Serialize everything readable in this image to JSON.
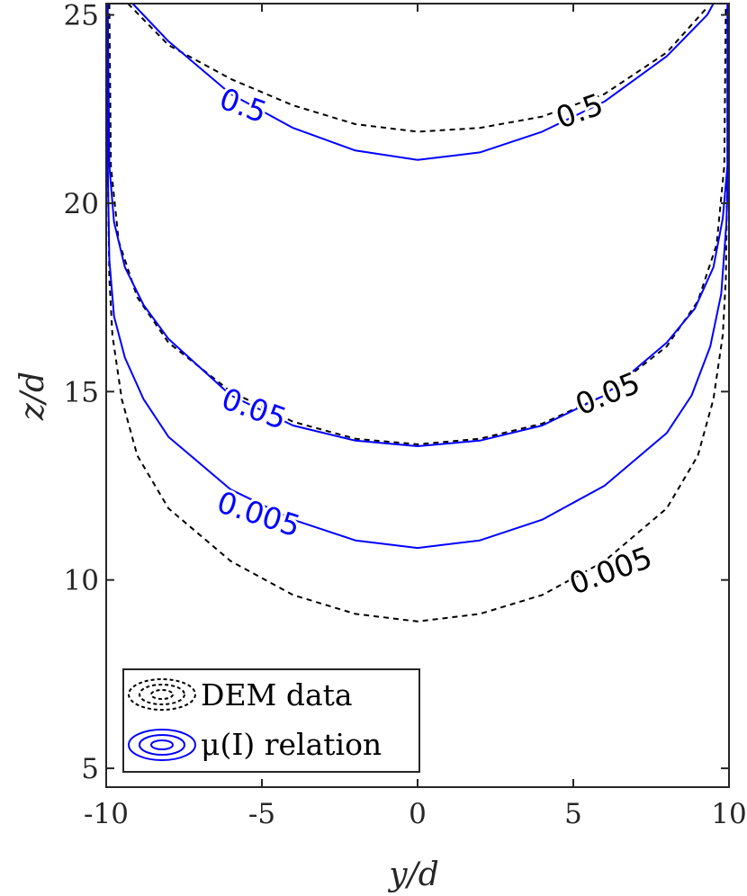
{
  "chart_data": {
    "type": "contour",
    "xlabel": "y/d",
    "ylabel": "z/d",
    "xlim": [
      -10,
      10
    ],
    "ylim": [
      4.5,
      25.3
    ],
    "xticks": [
      -10,
      -5,
      0,
      5,
      10
    ],
    "yticks": [
      5,
      10,
      15,
      20,
      25
    ],
    "xtick_labels": [
      "-10",
      "-5",
      "0",
      "5",
      "10"
    ],
    "ytick_labels": [
      "5",
      "10",
      "15",
      "20",
      "25"
    ],
    "grid": false,
    "legend_position": "bottom-left",
    "series": [
      {
        "name": "DEM data",
        "color": "#000000",
        "style": "dashed",
        "contours": [
          {
            "level": "0.5",
            "points": [
              [
                -9.3,
                25.3
              ],
              [
                -8,
                24.2
              ],
              [
                -6,
                23.3
              ],
              [
                -4,
                22.6
              ],
              [
                -2,
                22.1
              ],
              [
                0,
                21.9
              ],
              [
                2,
                22.0
              ],
              [
                4,
                22.3
              ],
              [
                6,
                22.9
              ],
              [
                8,
                24.0
              ],
              [
                9.3,
                25.2
              ]
            ]
          },
          {
            "level": "0.05",
            "points": [
              [
                -9.9,
                25.3
              ],
              [
                -9.85,
                21
              ],
              [
                -9.6,
                19
              ],
              [
                -9,
                17.5
              ],
              [
                -8,
                16.3
              ],
              [
                -6,
                15
              ],
              [
                -4,
                14.2
              ],
              [
                -2,
                13.75
              ],
              [
                0,
                13.6
              ],
              [
                2,
                13.75
              ],
              [
                4,
                14.15
              ],
              [
                6,
                14.9
              ],
              [
                8,
                16.2
              ],
              [
                9.0,
                17.4
              ],
              [
                9.6,
                18.9
              ],
              [
                9.85,
                21
              ],
              [
                9.9,
                25.3
              ]
            ]
          },
          {
            "level": "0.005",
            "points": [
              [
                -9.95,
                25.3
              ],
              [
                -9.95,
                21
              ],
              [
                -9.9,
                18
              ],
              [
                -9.8,
                16.5
              ],
              [
                -9.5,
                14.8
              ],
              [
                -9,
                13.3
              ],
              [
                -8,
                11.9
              ],
              [
                -6,
                10.5
              ],
              [
                -4,
                9.6
              ],
              [
                -2,
                9.1
              ],
              [
                0,
                8.9
              ],
              [
                2,
                9.1
              ],
              [
                4,
                9.6
              ],
              [
                6,
                10.5
              ],
              [
                8,
                11.9
              ],
              [
                9.0,
                13.3
              ],
              [
                9.5,
                14.8
              ],
              [
                9.8,
                16.5
              ],
              [
                9.9,
                18
              ],
              [
                9.95,
                21
              ],
              [
                9.95,
                25.3
              ]
            ]
          }
        ]
      },
      {
        "name": "μ(I) relation",
        "color": "#0000ff",
        "style": "solid",
        "contours": [
          {
            "level": "0.5",
            "points": [
              [
                -9.15,
                25.3
              ],
              [
                -8,
                24.3
              ],
              [
                -6,
                22.9
              ],
              [
                -4,
                22.0
              ],
              [
                -2,
                21.4
              ],
              [
                0,
                21.15
              ],
              [
                2,
                21.35
              ],
              [
                4,
                21.9
              ],
              [
                6,
                22.7
              ],
              [
                8,
                23.9
              ],
              [
                9.3,
                25.0
              ],
              [
                9.5,
                25.3
              ]
            ]
          },
          {
            "level": "0.05",
            "points": [
              [
                -9.95,
                25.3
              ],
              [
                -9.9,
                21
              ],
              [
                -9.75,
                19.5
              ],
              [
                -9.4,
                18.3
              ],
              [
                -8.8,
                17.3
              ],
              [
                -8,
                16.4
              ],
              [
                -6,
                14.9
              ],
              [
                -4,
                14.1
              ],
              [
                -2,
                13.7
              ],
              [
                0,
                13.55
              ],
              [
                2,
                13.7
              ],
              [
                4,
                14.1
              ],
              [
                6,
                14.9
              ],
              [
                8,
                16.3
              ],
              [
                8.9,
                17.2
              ],
              [
                9.5,
                18.3
              ],
              [
                9.8,
                19.6
              ],
              [
                9.95,
                21
              ],
              [
                9.95,
                25.3
              ]
            ]
          },
          {
            "level": "0.005",
            "points": [
              [
                -9.98,
                25.3
              ],
              [
                -9.95,
                21
              ],
              [
                -9.9,
                18.5
              ],
              [
                -9.75,
                17
              ],
              [
                -9.4,
                15.9
              ],
              [
                -8.8,
                14.8
              ],
              [
                -8,
                13.8
              ],
              [
                -6,
                12.4
              ],
              [
                -4,
                11.6
              ],
              [
                -2,
                11.05
              ],
              [
                0,
                10.85
              ],
              [
                2,
                11.05
              ],
              [
                4,
                11.6
              ],
              [
                6,
                12.5
              ],
              [
                8,
                13.9
              ],
              [
                8.8,
                14.9
              ],
              [
                9.4,
                16.2
              ],
              [
                9.75,
                17.6
              ],
              [
                9.92,
                19.5
              ],
              [
                9.97,
                21
              ],
              [
                9.98,
                25.3
              ]
            ]
          }
        ]
      }
    ],
    "contour_labels": [
      {
        "text": "0.5",
        "series": "DEM data",
        "x": 5.2,
        "y": 22.45,
        "angle": -20
      },
      {
        "text": "0.05",
        "series": "DEM data",
        "x": 6.1,
        "y": 14.95,
        "angle": -22
      },
      {
        "text": "0.005",
        "series": "DEM data",
        "x": 6.2,
        "y": 10.25,
        "angle": -20
      },
      {
        "text": "0.5",
        "series": "μ(I) relation",
        "x": -5.6,
        "y": 22.6,
        "angle": 20
      },
      {
        "text": "0.05",
        "series": "μ(I) relation",
        "x": -5.25,
        "y": 14.55,
        "angle": 20
      },
      {
        "text": "0.005",
        "series": "μ(I) relation",
        "x": -5.1,
        "y": 11.75,
        "angle": 18
      }
    ]
  }
}
